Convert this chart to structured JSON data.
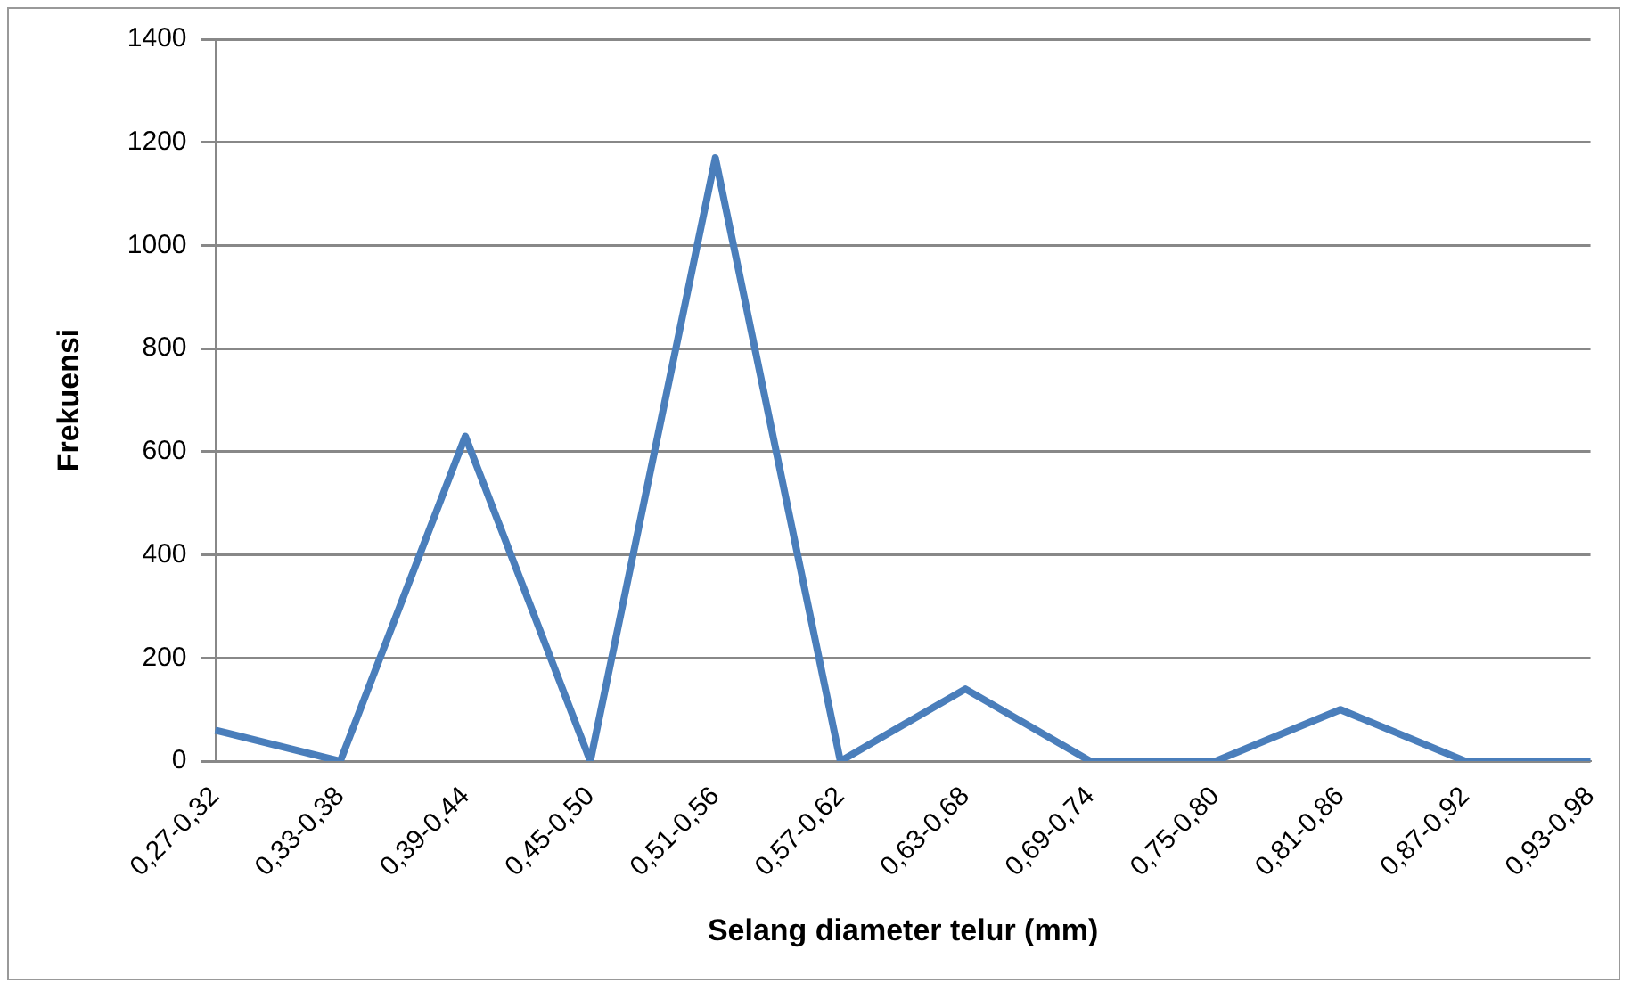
{
  "chart_data": {
    "type": "line",
    "xlabel": "Selang diameter telur (mm)",
    "ylabel": "Frekuensi",
    "categories": [
      "0,27-0,32",
      "0,33-0,38",
      "0,39-0,44",
      "0,45-0,50",
      "0,51-0,56",
      "0,57-0,62",
      "0,63-0,68",
      "0,69-0,74",
      "0,75-0,80",
      "0,81-0,86",
      "0,87-0,92",
      "0,93-0,98"
    ],
    "series": [
      {
        "color": "#4a7ebb",
        "values": [
          60,
          0,
          630,
          0,
          1170,
          0,
          140,
          0,
          0,
          100,
          0,
          0
        ]
      }
    ],
    "ylim": [
      0,
      1400
    ],
    "yticks": [
      0,
      200,
      400,
      600,
      800,
      1000,
      1200,
      1400
    ],
    "grid": "y",
    "legend": false,
    "marker": "none",
    "line_style": "solid"
  }
}
